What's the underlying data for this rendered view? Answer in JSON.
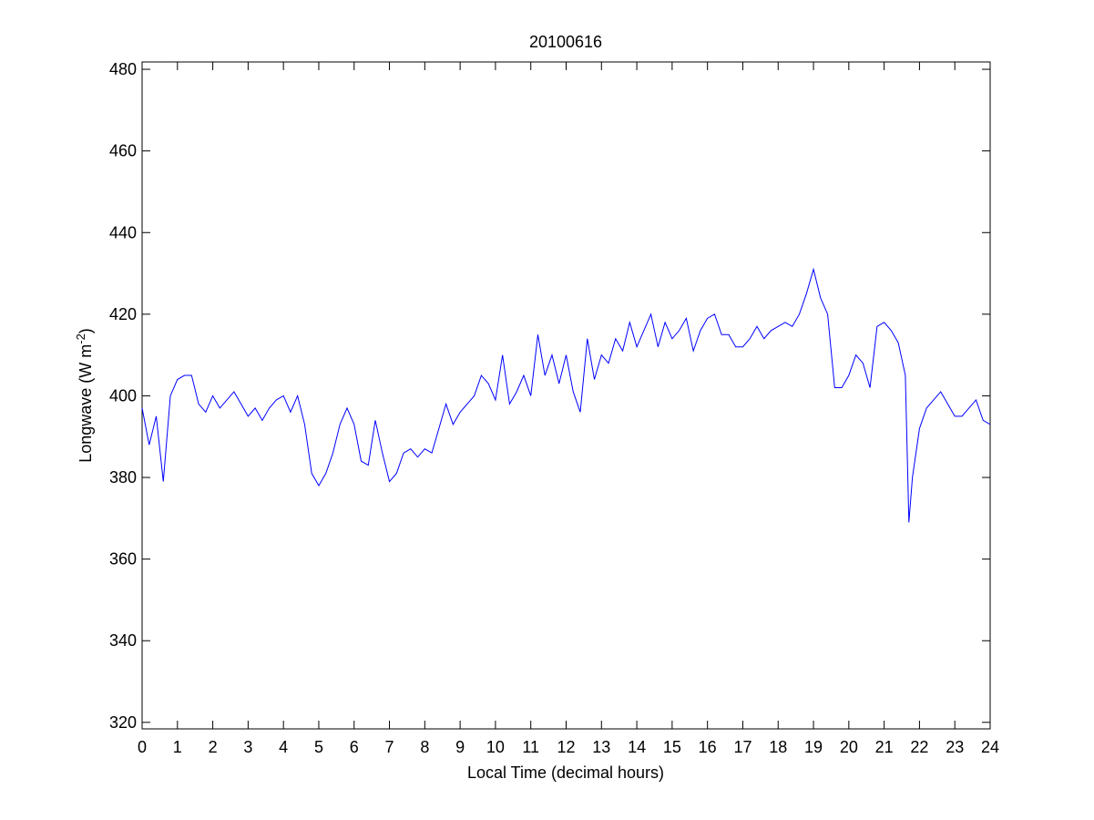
{
  "chart_data": {
    "type": "line",
    "title": "20100616",
    "xlabel": "Local Time (decimal hours)",
    "ylabel": {
      "text": "Longwave (W m",
      "superscript": "-2",
      "suffix": ")"
    },
    "x": [
      0,
      0.2,
      0.4,
      0.6,
      0.8,
      1,
      1.2,
      1.4,
      1.6,
      1.8,
      2,
      2.2,
      2.4,
      2.6,
      2.8,
      3,
      3.2,
      3.4,
      3.6,
      3.8,
      4,
      4.2,
      4.4,
      4.6,
      4.8,
      5,
      5.2,
      5.4,
      5.6,
      5.8,
      6,
      6.2,
      6.4,
      6.6,
      6.8,
      7,
      7.2,
      7.4,
      7.6,
      7.8,
      8,
      8.2,
      8.4,
      8.6,
      8.8,
      9,
      9.2,
      9.4,
      9.6,
      9.8,
      10,
      10.2,
      10.4,
      10.6,
      10.8,
      11,
      11.2,
      11.4,
      11.6,
      11.8,
      12,
      12.2,
      12.4,
      12.6,
      12.8,
      13,
      13.2,
      13.4,
      13.6,
      13.8,
      14,
      14.2,
      14.4,
      14.6,
      14.8,
      15,
      15.2,
      15.4,
      15.6,
      15.8,
      16,
      16.2,
      16.4,
      16.6,
      16.8,
      17,
      17.2,
      17.4,
      17.6,
      17.8,
      18,
      18.2,
      18.4,
      18.6,
      18.8,
      19,
      19.2,
      19.4,
      19.6,
      19.8,
      20,
      20.2,
      20.4,
      20.6,
      20.8,
      21,
      21.2,
      21.4,
      21.6,
      21.7,
      21.8,
      22,
      22.2,
      22.4,
      22.6,
      22.8,
      23,
      23.2,
      23.4,
      23.6,
      23.8,
      24
    ],
    "series": [
      {
        "name": "Longwave",
        "color": "#0000ff",
        "values": [
          397,
          388,
          395,
          379,
          400,
          404,
          405,
          405,
          398,
          396,
          400,
          397,
          399,
          401,
          398,
          395,
          397,
          394,
          397,
          399,
          400,
          396,
          400,
          393,
          381,
          378,
          381,
          386,
          393,
          397,
          393,
          384,
          383,
          394,
          386,
          379,
          381,
          386,
          387,
          385,
          387,
          386,
          392,
          398,
          393,
          396,
          398,
          400,
          405,
          403,
          399,
          410,
          398,
          401,
          405,
          400,
          415,
          405,
          410,
          403,
          410,
          401,
          396,
          414,
          404,
          410,
          408,
          414,
          411,
          418,
          412,
          416,
          420,
          412,
          418,
          414,
          416,
          419,
          411,
          416,
          419,
          420,
          415,
          415,
          412,
          412,
          414,
          417,
          414,
          416,
          417,
          418,
          417,
          420,
          425,
          431,
          424,
          420,
          402,
          402,
          405,
          410,
          408,
          402,
          417,
          418,
          416,
          413,
          405,
          369,
          380,
          392,
          397,
          399,
          401,
          398,
          395,
          395,
          397,
          399,
          394,
          393
        ]
      }
    ],
    "xlim": [
      0,
      24
    ],
    "xticks": [
      0,
      1,
      2,
      3,
      4,
      5,
      6,
      7,
      8,
      9,
      10,
      11,
      12,
      13,
      14,
      15,
      16,
      17,
      18,
      19,
      20,
      21,
      22,
      23,
      24
    ],
    "ylim": [
      318.4,
      481.8
    ],
    "yticks": [
      320,
      340,
      360,
      380,
      400,
      420,
      440,
      460,
      480
    ],
    "grid": false
  }
}
